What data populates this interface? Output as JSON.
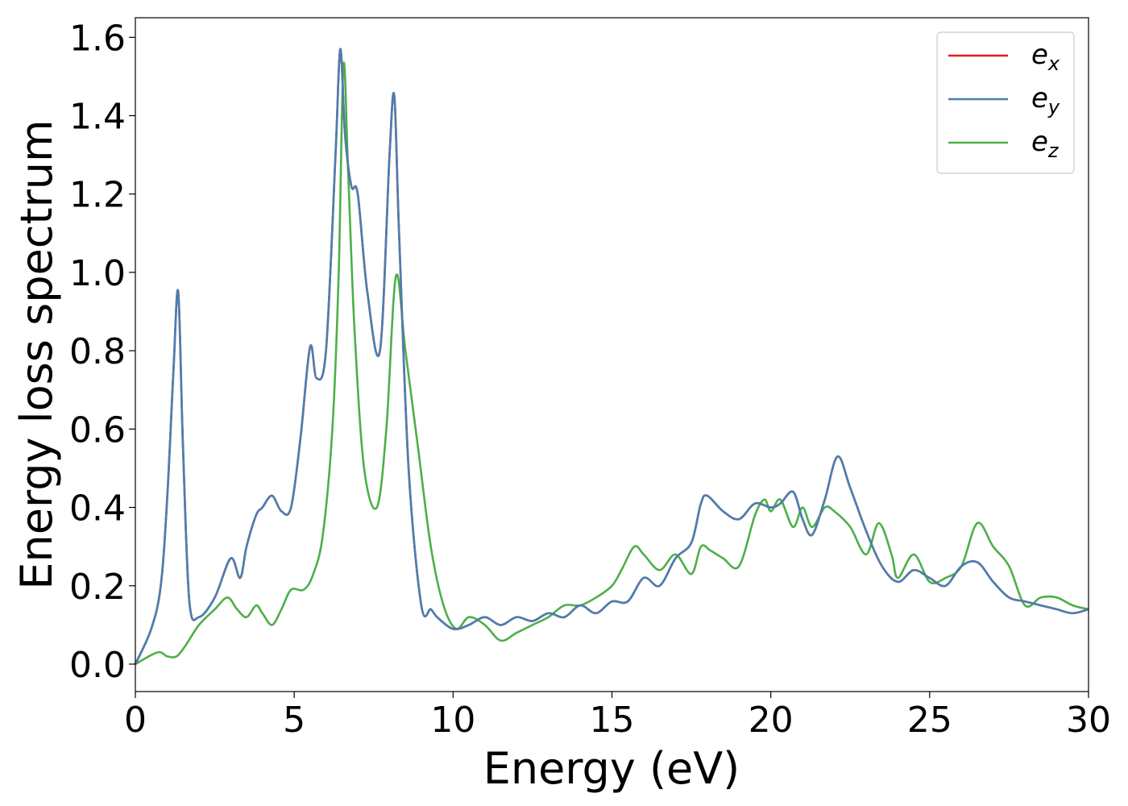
{
  "chart_data": {
    "type": "line",
    "xlabel": "Energy (eV)",
    "ylabel": "Energy loss spectrum",
    "xlim": [
      0,
      30
    ],
    "ylim": [
      -0.07,
      1.65
    ],
    "xticks": [
      0,
      5,
      10,
      15,
      20,
      25,
      30
    ],
    "xtick_labels": [
      "0",
      "5",
      "10",
      "15",
      "20",
      "25",
      "30"
    ],
    "yticks": [
      0.0,
      0.2,
      0.4,
      0.6,
      0.8,
      1.0,
      1.2,
      1.4,
      1.6
    ],
    "ytick_labels": [
      "0.0",
      "0.2",
      "0.4",
      "0.6",
      "0.8",
      "1.0",
      "1.2",
      "1.4",
      "1.6"
    ],
    "grid": false,
    "legend_position": "top-right",
    "series": [
      {
        "name": "e_x",
        "label_base": "e",
        "label_sub": "x",
        "color": "#e41a1c",
        "x": [
          0,
          0.5,
          0.8,
          1.0,
          1.2,
          1.35,
          1.5,
          1.7,
          2.0,
          2.5,
          3.0,
          3.3,
          3.5,
          3.8,
          4.0,
          4.3,
          4.6,
          4.9,
          5.2,
          5.5,
          5.7,
          6.0,
          6.3,
          6.45,
          6.6,
          6.8,
          7.0,
          7.3,
          7.7,
          8.0,
          8.15,
          8.3,
          8.6,
          9.0,
          9.3,
          9.5,
          10.0,
          10.5,
          11.0,
          11.5,
          12.0,
          12.5,
          13.0,
          13.5,
          14.0,
          14.5,
          15.0,
          15.5,
          16.0,
          16.5,
          17.0,
          17.5,
          17.8,
          18.0,
          18.5,
          19.0,
          19.5,
          20.0,
          20.3,
          20.7,
          21.0,
          21.3,
          21.7,
          22.1,
          22.5,
          23.0,
          23.5,
          24.0,
          24.5,
          25.0,
          25.5,
          26.0,
          26.5,
          27.0,
          27.5,
          28.0,
          28.5,
          29.0,
          29.5,
          30.0
        ],
        "y": [
          0.0,
          0.09,
          0.2,
          0.42,
          0.75,
          0.95,
          0.55,
          0.16,
          0.12,
          0.17,
          0.27,
          0.22,
          0.3,
          0.38,
          0.4,
          0.43,
          0.39,
          0.4,
          0.58,
          0.81,
          0.73,
          0.8,
          1.3,
          1.57,
          1.35,
          1.22,
          1.2,
          0.95,
          0.8,
          1.3,
          1.45,
          1.1,
          0.5,
          0.15,
          0.14,
          0.12,
          0.09,
          0.1,
          0.12,
          0.1,
          0.12,
          0.11,
          0.13,
          0.12,
          0.15,
          0.13,
          0.16,
          0.16,
          0.22,
          0.2,
          0.27,
          0.31,
          0.41,
          0.43,
          0.39,
          0.37,
          0.41,
          0.4,
          0.41,
          0.44,
          0.37,
          0.33,
          0.42,
          0.53,
          0.45,
          0.34,
          0.25,
          0.21,
          0.24,
          0.22,
          0.2,
          0.25,
          0.26,
          0.21,
          0.17,
          0.16,
          0.15,
          0.14,
          0.13,
          0.14
        ]
      },
      {
        "name": "e_y",
        "label_base": "e",
        "label_sub": "y",
        "color": "#4a7fb0",
        "x": [
          0,
          0.5,
          0.8,
          1.0,
          1.2,
          1.35,
          1.5,
          1.7,
          2.0,
          2.5,
          3.0,
          3.3,
          3.5,
          3.8,
          4.0,
          4.3,
          4.6,
          4.9,
          5.2,
          5.5,
          5.7,
          6.0,
          6.3,
          6.45,
          6.6,
          6.8,
          7.0,
          7.3,
          7.7,
          8.0,
          8.15,
          8.3,
          8.6,
          9.0,
          9.3,
          9.5,
          10.0,
          10.5,
          11.0,
          11.5,
          12.0,
          12.5,
          13.0,
          13.5,
          14.0,
          14.5,
          15.0,
          15.5,
          16.0,
          16.5,
          17.0,
          17.5,
          17.8,
          18.0,
          18.5,
          19.0,
          19.5,
          20.0,
          20.3,
          20.7,
          21.0,
          21.3,
          21.7,
          22.1,
          22.5,
          23.0,
          23.5,
          24.0,
          24.5,
          25.0,
          25.5,
          26.0,
          26.5,
          27.0,
          27.5,
          28.0,
          28.5,
          29.0,
          29.5,
          30.0
        ],
        "y": [
          0.0,
          0.09,
          0.2,
          0.42,
          0.75,
          0.95,
          0.55,
          0.16,
          0.12,
          0.17,
          0.27,
          0.22,
          0.3,
          0.38,
          0.4,
          0.43,
          0.39,
          0.4,
          0.58,
          0.81,
          0.73,
          0.8,
          1.3,
          1.57,
          1.35,
          1.22,
          1.2,
          0.95,
          0.8,
          1.3,
          1.45,
          1.1,
          0.5,
          0.15,
          0.14,
          0.12,
          0.09,
          0.1,
          0.12,
          0.1,
          0.12,
          0.11,
          0.13,
          0.12,
          0.15,
          0.13,
          0.16,
          0.16,
          0.22,
          0.2,
          0.27,
          0.31,
          0.41,
          0.43,
          0.39,
          0.37,
          0.41,
          0.4,
          0.41,
          0.44,
          0.37,
          0.33,
          0.42,
          0.53,
          0.45,
          0.34,
          0.25,
          0.21,
          0.24,
          0.22,
          0.2,
          0.25,
          0.26,
          0.21,
          0.17,
          0.16,
          0.15,
          0.14,
          0.13,
          0.14
        ]
      },
      {
        "name": "e_z",
        "label_base": "e",
        "label_sub": "z",
        "color": "#4daf4a",
        "x": [
          0,
          0.7,
          1.0,
          1.3,
          1.6,
          2.0,
          2.5,
          2.9,
          3.2,
          3.5,
          3.8,
          4.0,
          4.3,
          4.6,
          4.9,
          5.3,
          5.6,
          5.9,
          6.2,
          6.4,
          6.55,
          6.7,
          6.9,
          7.2,
          7.6,
          7.9,
          8.2,
          8.5,
          8.9,
          9.3,
          9.7,
          10.1,
          10.5,
          11.0,
          11.5,
          12.0,
          12.5,
          13.0,
          13.5,
          14.0,
          14.5,
          15.0,
          15.3,
          15.7,
          16.0,
          16.5,
          17.0,
          17.5,
          17.8,
          18.1,
          18.5,
          19.0,
          19.5,
          19.8,
          20.0,
          20.3,
          20.7,
          21.0,
          21.3,
          21.7,
          22.0,
          22.5,
          23.0,
          23.4,
          23.8,
          24.0,
          24.5,
          25.0,
          25.5,
          26.0,
          26.5,
          27.0,
          27.5,
          28.0,
          28.5,
          29.0,
          29.5,
          30.0
        ],
        "y": [
          0.0,
          0.03,
          0.02,
          0.02,
          0.05,
          0.1,
          0.14,
          0.17,
          0.14,
          0.12,
          0.15,
          0.13,
          0.1,
          0.14,
          0.19,
          0.19,
          0.23,
          0.33,
          0.6,
          1.0,
          1.53,
          1.25,
          0.85,
          0.5,
          0.4,
          0.6,
          0.99,
          0.8,
          0.55,
          0.3,
          0.15,
          0.09,
          0.12,
          0.1,
          0.06,
          0.08,
          0.1,
          0.12,
          0.15,
          0.15,
          0.17,
          0.2,
          0.24,
          0.3,
          0.28,
          0.24,
          0.28,
          0.23,
          0.3,
          0.29,
          0.27,
          0.25,
          0.38,
          0.42,
          0.39,
          0.42,
          0.35,
          0.4,
          0.35,
          0.4,
          0.39,
          0.35,
          0.28,
          0.36,
          0.28,
          0.22,
          0.28,
          0.21,
          0.22,
          0.25,
          0.36,
          0.3,
          0.25,
          0.15,
          0.17,
          0.17,
          0.15,
          0.14
        ]
      }
    ]
  }
}
